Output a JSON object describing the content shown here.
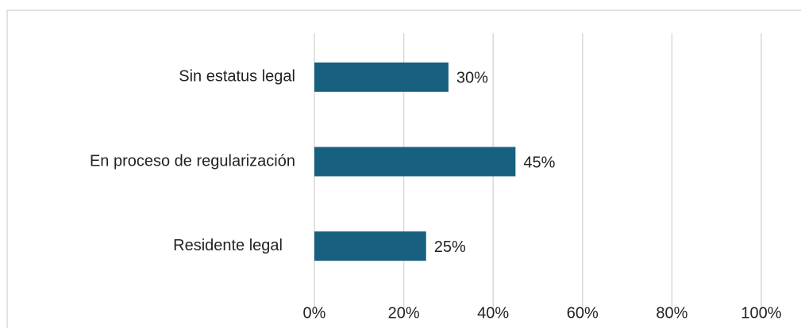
{
  "chart_data": {
    "type": "bar",
    "orientation": "horizontal",
    "categories": [
      "Sin estatus legal",
      "En proceso de regularización",
      "Residente legal"
    ],
    "values": [
      30,
      45,
      25
    ],
    "value_labels": [
      "30%",
      "45%",
      "25%"
    ],
    "color": "#17607f",
    "xlim": [
      0,
      100
    ],
    "xticks": [
      {
        "value": 0,
        "label": "0%"
      },
      {
        "value": 20,
        "label": "20%"
      },
      {
        "value": 40,
        "label": "40%"
      },
      {
        "value": 60,
        "label": "60%"
      },
      {
        "value": 80,
        "label": "80%"
      },
      {
        "value": 100,
        "label": "100%"
      }
    ],
    "grid": true
  }
}
